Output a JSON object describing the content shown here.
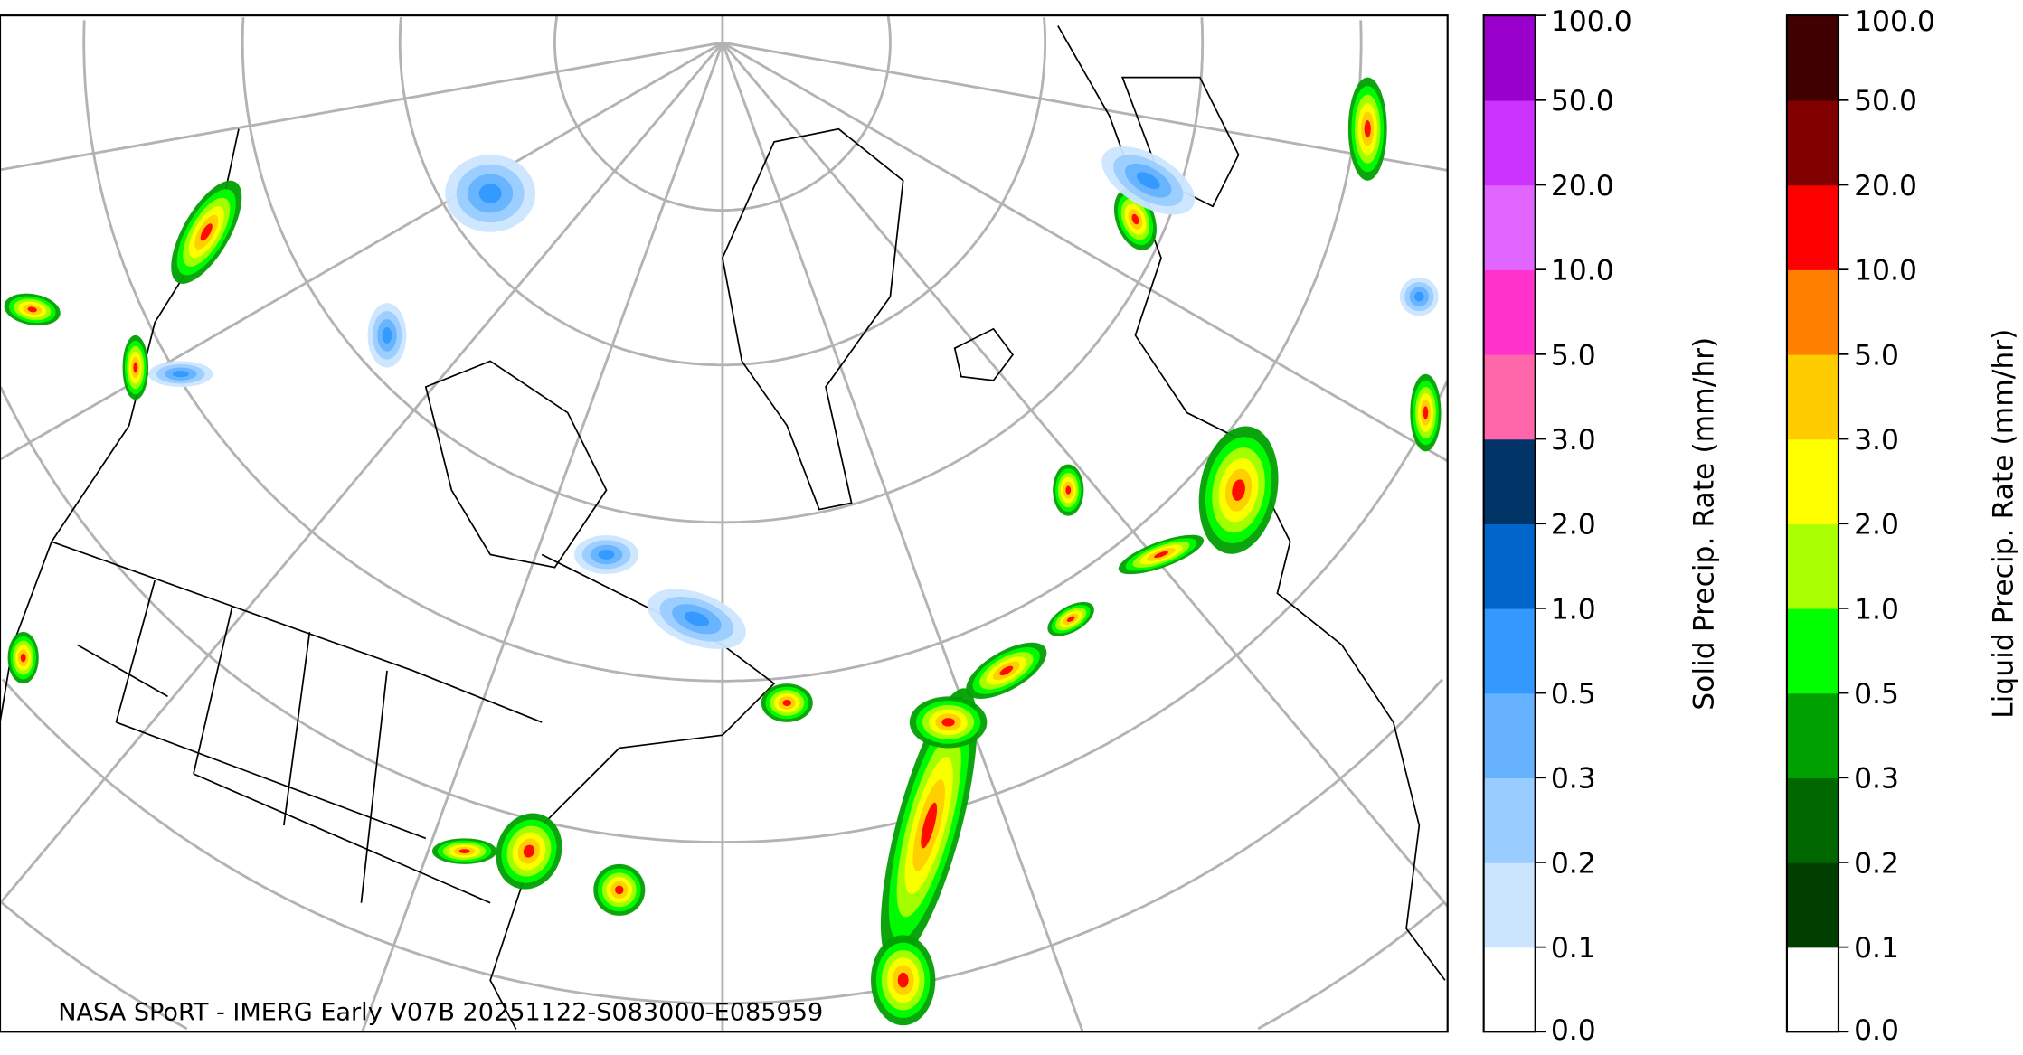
{
  "map": {
    "projection": "polar stereographic",
    "grid_color": "#b3b3b3",
    "coastline_color": "#000000",
    "footer_text": "NASA SPoRT - IMERG Early V07B 20251122-S083000-E085959"
  },
  "colorbars": [
    {
      "label": "Solid Precip. Rate (mm/hr)",
      "ticks": [
        "0.0",
        "0.1",
        "0.2",
        "0.3",
        "0.5",
        "1.0",
        "2.0",
        "3.0",
        "5.0",
        "10.0",
        "20.0",
        "50.0",
        "100.0"
      ],
      "colors": [
        "#ffffff",
        "#cce5ff",
        "#99ccff",
        "#66b2ff",
        "#3399ff",
        "#0066cc",
        "#003366",
        "#ff66aa",
        "#ff33cc",
        "#e066ff",
        "#cc33ff",
        "#9900cc"
      ]
    },
    {
      "label": "Liquid Precip. Rate (mm/hr)",
      "ticks": [
        "0.0",
        "0.1",
        "0.2",
        "0.3",
        "0.5",
        "1.0",
        "2.0",
        "3.0",
        "5.0",
        "10.0",
        "20.0",
        "50.0",
        "100.0"
      ],
      "colors": [
        "#ffffff",
        "#003f00",
        "#006600",
        "#00a000",
        "#00ff00",
        "#aaff00",
        "#ffff00",
        "#ffcc00",
        "#ff8000",
        "#ff0000",
        "#800000",
        "#400000"
      ]
    }
  ]
}
